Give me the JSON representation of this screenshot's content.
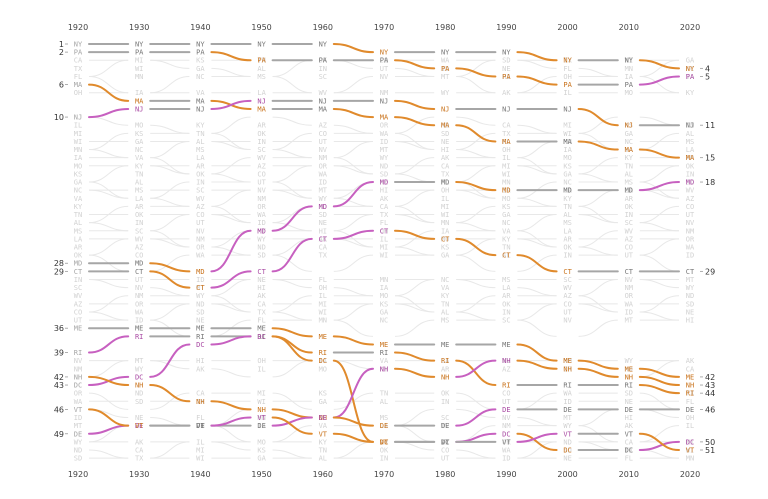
{
  "chart_data": {
    "type": "bump",
    "years": [
      "1920",
      "1930",
      "1940",
      "1950",
      "1960",
      "1970",
      "1980",
      "1990",
      "2000",
      "2010",
      "2020"
    ],
    "rank_max": 52,
    "colors": {
      "same": "#a6a6a6",
      "down": "#e08a2c",
      "up": "#c760c0",
      "faded": "#e8e8e8"
    },
    "highlight": [
      {
        "abbr": "NY",
        "ranks": [
          1,
          1,
          1,
          1,
          1,
          2,
          2,
          2,
          3,
          3,
          4
        ]
      },
      {
        "abbr": "PA",
        "ranks": [
          2,
          2,
          2,
          3,
          3,
          3,
          4,
          5,
          6,
          6,
          5
        ]
      },
      {
        "abbr": "MA",
        "ranks": [
          6,
          8,
          8,
          9,
          9,
          10,
          11,
          13,
          13,
          14,
          15
        ]
      },
      {
        "abbr": "NJ",
        "ranks": [
          10,
          9,
          9,
          8,
          8,
          8,
          9,
          9,
          9,
          11,
          11
        ]
      },
      {
        "abbr": "MD",
        "ranks": [
          28,
          28,
          29,
          24,
          21,
          18,
          18,
          19,
          19,
          19,
          18
        ]
      },
      {
        "abbr": "CT",
        "ranks": [
          29,
          29,
          31,
          29,
          25,
          24,
          25,
          27,
          29,
          29,
          29
        ]
      },
      {
        "abbr": "ME",
        "ranks": [
          36,
          36,
          36,
          36,
          37,
          38,
          38,
          38,
          40,
          41,
          42
        ]
      },
      {
        "abbr": "RI",
        "ranks": [
          39,
          37,
          37,
          37,
          39,
          39,
          40,
          43,
          43,
          43,
          44
        ]
      },
      {
        "abbr": "DC",
        "ranks": [
          43,
          42,
          38,
          37,
          40,
          50,
          50,
          49,
          51,
          51,
          50
        ]
      },
      {
        "abbr": "NH",
        "ranks": [
          42,
          43,
          45,
          46,
          47,
          41,
          42,
          40,
          41,
          42,
          43
        ]
      },
      {
        "abbr": "DE",
        "ranks": [
          49,
          48,
          48,
          48,
          47,
          48,
          48,
          46,
          46,
          46,
          46
        ]
      },
      {
        "abbr": "VT",
        "ranks": [
          46,
          48,
          48,
          47,
          49,
          50,
          50,
          50,
          49,
          49,
          51
        ]
      }
    ],
    "faded_ranks": [
      3,
      4,
      5,
      7,
      11,
      12,
      13,
      14,
      15,
      16,
      17,
      18,
      19,
      20,
      21,
      22,
      23,
      24,
      25,
      26,
      27,
      30,
      31,
      32,
      33,
      34,
      35,
      40,
      41,
      44,
      45,
      47,
      48,
      50,
      51,
      52
    ],
    "faded_state_labels": [
      "CA",
      "TX",
      "FL",
      "OH",
      "IL",
      "MI",
      "WI",
      "MN",
      "IA",
      "MO",
      "KS",
      "GA",
      "NC",
      "VA",
      "KY",
      "TN",
      "AL",
      "MS",
      "LA",
      "AR",
      "OK",
      "IN",
      "SC",
      "WV",
      "AZ",
      "CO",
      "UT",
      "NV",
      "NM",
      "OR",
      "WA",
      "ID",
      "MT",
      "WY",
      "ND",
      "SD",
      "NE",
      "HI",
      "AK"
    ]
  }
}
